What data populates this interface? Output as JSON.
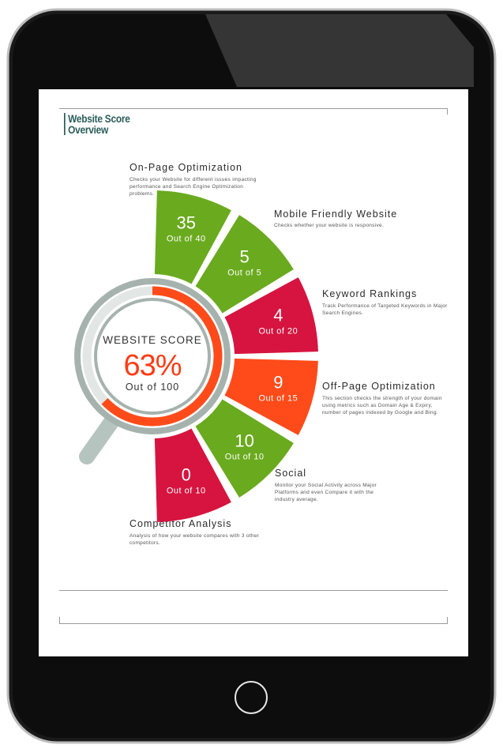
{
  "report": {
    "title_line1": "Website Score",
    "title_line2": "Overview"
  },
  "score": {
    "label": "WEBSITE SCORE",
    "value": "63%",
    "out_of": "Out of 100",
    "percent": 63
  },
  "segments": [
    {
      "id": "onpage",
      "title": "On-Page Optimization",
      "description": "Checks your Website for different issues impacting performance and Search Engine Optimization problems.",
      "score": "35",
      "out_of": "Out of 40",
      "color": "#6aaa1e"
    },
    {
      "id": "mobile",
      "title": "Mobile Friendly Website",
      "description": "Checks whether your website is responsive.",
      "score": "5",
      "out_of": "Out of 5",
      "color": "#6aaa1e"
    },
    {
      "id": "keyword",
      "title": "Keyword Rankings",
      "description": "Track Performance of Targeted Keywords in Major Search Engines.",
      "score": "4",
      "out_of": "Out of 20",
      "color": "#d6143f"
    },
    {
      "id": "offpage",
      "title": "Off-Page Optimization",
      "description": "This section checks the strength of your domain using metrics such as Domain Age & Expiry, number of pages indexed by Google and Bing.",
      "score": "9",
      "out_of": "Out of 15",
      "color": "#ff4b1a"
    },
    {
      "id": "social",
      "title": "Social",
      "description": "Monitor your Social Activity across Major Platforms and even Compare it with the industry average.",
      "score": "10",
      "out_of": "Out of 10",
      "color": "#6aaa1e"
    },
    {
      "id": "competitor",
      "title": "Competitor Analysis",
      "description": "Analysis of how your website compares with 3 other competitors.",
      "score": "0",
      "out_of": "Out of 10",
      "color": "#d6143f"
    }
  ],
  "colors": {
    "accent_teal": "#2a5d5a",
    "ring_orange": "#ff4b1a",
    "ring_gray": "#a6b2ae"
  }
}
